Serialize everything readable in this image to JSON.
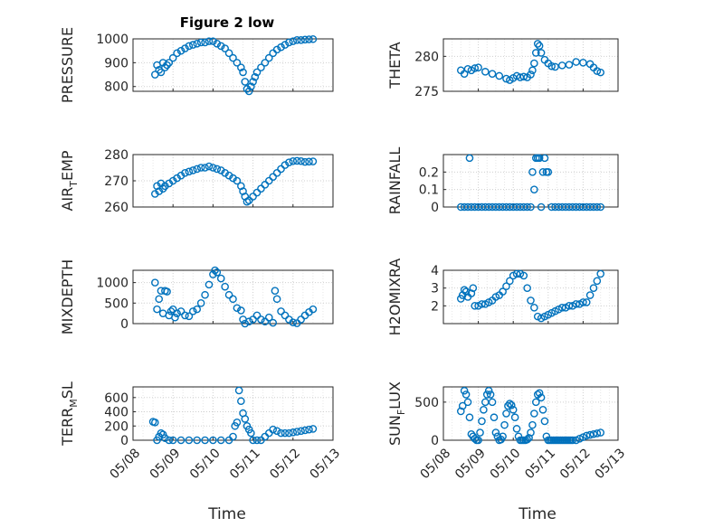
{
  "figure": {
    "title": "Figure 2 low",
    "xlabel": "Time",
    "xtick_labels": [
      "05/08",
      "05/09",
      "05/10",
      "05/11",
      "05/12",
      "05/13"
    ]
  },
  "colors": {
    "marker": "#0072BD",
    "axis": "#262626",
    "grid": "#dedede",
    "background": "#ffffff"
  },
  "chart_data": [
    {
      "type": "scatter",
      "name": "pressure",
      "ylabel": "PRESSURE",
      "xlim": [
        0,
        5
      ],
      "ylim": [
        780,
        1000
      ],
      "ytick_labels": [
        "800",
        "900",
        "1000"
      ],
      "yticks": [
        800,
        900,
        1000
      ],
      "x": [
        0.55,
        0.6,
        0.65,
        0.7,
        0.75,
        0.8,
        0.85,
        0.9,
        1.0,
        1.1,
        1.2,
        1.3,
        1.4,
        1.5,
        1.6,
        1.7,
        1.8,
        1.9,
        2.0,
        2.1,
        2.2,
        2.3,
        2.4,
        2.5,
        2.6,
        2.7,
        2.75,
        2.8,
        2.85,
        2.9,
        2.95,
        3.0,
        3.05,
        3.1,
        3.2,
        3.3,
        3.4,
        3.5,
        3.6,
        3.7,
        3.8,
        3.9,
        4.0,
        4.1,
        4.2,
        4.3,
        4.4,
        4.5
      ],
      "y": [
        850,
        890,
        870,
        860,
        900,
        880,
        890,
        900,
        920,
        940,
        950,
        960,
        970,
        975,
        980,
        985,
        985,
        990,
        990,
        980,
        970,
        960,
        940,
        920,
        900,
        880,
        860,
        820,
        790,
        780,
        800,
        820,
        840,
        860,
        880,
        900,
        920,
        940,
        955,
        965,
        975,
        985,
        990,
        995,
        995,
        997,
        998,
        999
      ]
    },
    {
      "type": "scatter",
      "name": "theta",
      "ylabel": "THETA",
      "xlim": [
        0,
        5
      ],
      "ylim": [
        275,
        282.5
      ],
      "ytick_labels": [
        "275",
        "280"
      ],
      "yticks": [
        275,
        280
      ],
      "x": [
        0.5,
        0.6,
        0.7,
        0.8,
        0.9,
        1.0,
        1.2,
        1.4,
        1.6,
        1.8,
        1.9,
        2.0,
        2.1,
        2.2,
        2.3,
        2.4,
        2.5,
        2.55,
        2.6,
        2.65,
        2.7,
        2.75,
        2.8,
        2.9,
        3.0,
        3.1,
        3.2,
        3.4,
        3.6,
        3.8,
        4.0,
        4.2,
        4.3,
        4.4,
        4.5
      ],
      "y": [
        278,
        277.5,
        278.2,
        278,
        278.3,
        278.4,
        277.8,
        277.5,
        277.2,
        276.8,
        276.6,
        276.9,
        277.2,
        277,
        277.1,
        277,
        277.4,
        278,
        279,
        280.5,
        281.8,
        281.5,
        280.5,
        279.5,
        279,
        278.6,
        278.5,
        278.7,
        278.8,
        279.2,
        279.1,
        278.9,
        278.4,
        277.9,
        277.7
      ]
    },
    {
      "type": "scatter",
      "name": "air_temp",
      "ylabel": "AIR",
      "ylabel_sub": "T",
      "ylabel_tail": "EMP",
      "xlim": [
        0,
        5
      ],
      "ylim": [
        260,
        280
      ],
      "ytick_labels": [
        "260",
        "270",
        "280"
      ],
      "yticks": [
        260,
        270,
        280
      ],
      "x": [
        0.55,
        0.6,
        0.65,
        0.7,
        0.75,
        0.8,
        0.9,
        1.0,
        1.1,
        1.2,
        1.3,
        1.4,
        1.5,
        1.6,
        1.7,
        1.8,
        1.9,
        2.0,
        2.1,
        2.2,
        2.3,
        2.4,
        2.5,
        2.6,
        2.7,
        2.75,
        2.8,
        2.85,
        2.9,
        3.0,
        3.1,
        3.2,
        3.3,
        3.4,
        3.5,
        3.6,
        3.7,
        3.8,
        3.9,
        4.0,
        4.1,
        4.2,
        4.3,
        4.4,
        4.5
      ],
      "y": [
        265,
        268,
        266,
        269,
        267,
        268,
        269,
        270,
        271,
        272,
        273,
        273.5,
        274,
        274.5,
        275,
        275,
        275.5,
        275,
        274.5,
        274,
        273,
        272,
        271,
        270,
        268,
        266,
        264,
        262,
        262.5,
        264,
        265.5,
        267,
        268.5,
        270,
        271.5,
        273,
        274.5,
        276,
        277,
        277.5,
        277.6,
        277.5,
        277.2,
        277.3,
        277.4
      ]
    },
    {
      "type": "scatter",
      "name": "rainfall",
      "ylabel": "RAINFALL",
      "xlim": [
        0,
        5
      ],
      "ylim": [
        0,
        0.3
      ],
      "ytick_labels": [
        "0",
        "0.1",
        "0.2"
      ],
      "yticks": [
        0,
        0.1,
        0.2
      ],
      "x": [
        0.5,
        0.6,
        0.7,
        0.75,
        0.8,
        0.9,
        1.0,
        1.1,
        1.2,
        1.3,
        1.4,
        1.5,
        1.6,
        1.7,
        1.8,
        1.9,
        2.0,
        2.1,
        2.2,
        2.3,
        2.4,
        2.5,
        2.55,
        2.6,
        2.65,
        2.7,
        2.75,
        2.8,
        2.85,
        2.9,
        2.95,
        3.0,
        3.1,
        3.2,
        3.3,
        3.4,
        3.5,
        3.6,
        3.7,
        3.8,
        3.9,
        4.0,
        4.1,
        4.2,
        4.3,
        4.4,
        4.5
      ],
      "y": [
        0,
        0,
        0,
        0.28,
        0,
        0,
        0,
        0,
        0,
        0,
        0,
        0,
        0,
        0,
        0,
        0,
        0,
        0,
        0,
        0,
        0,
        0,
        0.2,
        0.1,
        0.28,
        0.28,
        0.28,
        0,
        0.2,
        0.28,
        0.2,
        0.2,
        0,
        0,
        0,
        0,
        0,
        0,
        0,
        0,
        0,
        0,
        0,
        0,
        0,
        0,
        0
      ]
    },
    {
      "type": "scatter",
      "name": "mixdepth",
      "ylabel": "MIXDEPTH",
      "xlim": [
        0,
        5
      ],
      "ylim": [
        0,
        1300
      ],
      "ytick_labels": [
        "0",
        "500",
        "1000"
      ],
      "yticks": [
        0,
        500,
        1000
      ],
      "x": [
        0.55,
        0.6,
        0.65,
        0.7,
        0.75,
        0.8,
        0.85,
        0.9,
        0.95,
        1.0,
        1.05,
        1.1,
        1.2,
        1.3,
        1.4,
        1.5,
        1.6,
        1.7,
        1.8,
        1.9,
        2.0,
        2.05,
        2.1,
        2.2,
        2.3,
        2.4,
        2.5,
        2.6,
        2.7,
        2.75,
        2.8,
        2.9,
        3.0,
        3.1,
        3.2,
        3.3,
        3.4,
        3.5,
        3.55,
        3.6,
        3.7,
        3.8,
        3.9,
        4.0,
        4.1,
        4.2,
        4.3,
        4.4,
        4.5
      ],
      "y": [
        1000,
        350,
        600,
        800,
        250,
        800,
        780,
        200,
        300,
        350,
        150,
        250,
        300,
        200,
        180,
        300,
        350,
        500,
        700,
        950,
        1200,
        1300,
        1250,
        1100,
        900,
        700,
        600,
        380,
        320,
        100,
        0,
        50,
        100,
        200,
        100,
        50,
        150,
        20,
        800,
        600,
        300,
        200,
        100,
        30,
        10,
        100,
        200,
        280,
        350
      ]
    },
    {
      "type": "scatter",
      "name": "h2omixra",
      "ylabel": "H2OMIXRA",
      "xlim": [
        0,
        5
      ],
      "ylim": [
        1,
        4
      ],
      "ytick_labels": [
        "2",
        "3",
        "4"
      ],
      "yticks": [
        2,
        3,
        4
      ],
      "x": [
        0.5,
        0.55,
        0.6,
        0.65,
        0.7,
        0.8,
        0.85,
        0.9,
        1.0,
        1.1,
        1.2,
        1.3,
        1.4,
        1.5,
        1.6,
        1.7,
        1.8,
        1.9,
        2.0,
        2.1,
        2.2,
        2.3,
        2.4,
        2.5,
        2.6,
        2.7,
        2.8,
        2.9,
        3.0,
        3.1,
        3.2,
        3.3,
        3.4,
        3.5,
        3.6,
        3.7,
        3.8,
        3.9,
        4.0,
        4.1,
        4.2,
        4.3,
        4.4,
        4.5
      ],
      "y": [
        2.4,
        2.6,
        2.9,
        2.8,
        2.5,
        2.7,
        3.0,
        2.0,
        2.0,
        2.1,
        2.1,
        2.2,
        2.3,
        2.5,
        2.6,
        2.8,
        3.1,
        3.4,
        3.7,
        3.8,
        3.8,
        3.7,
        3.0,
        2.3,
        1.9,
        1.4,
        1.3,
        1.4,
        1.5,
        1.6,
        1.7,
        1.8,
        1.9,
        1.9,
        2.0,
        2.0,
        2.1,
        2.1,
        2.2,
        2.2,
        2.6,
        3.0,
        3.4,
        3.8
      ]
    },
    {
      "type": "scatter",
      "name": "terr_msl",
      "ylabel": "TERR",
      "ylabel_sub": "M",
      "ylabel_tail": "SL",
      "xlim": [
        0,
        5
      ],
      "ylim": [
        0,
        750
      ],
      "ytick_labels": [
        "0",
        "200",
        "400",
        "600"
      ],
      "yticks": [
        0,
        200,
        400,
        600
      ],
      "x": [
        0.5,
        0.55,
        0.6,
        0.65,
        0.7,
        0.75,
        0.8,
        0.9,
        1.0,
        1.2,
        1.4,
        1.6,
        1.8,
        2.0,
        2.2,
        2.4,
        2.5,
        2.55,
        2.6,
        2.65,
        2.7,
        2.75,
        2.8,
        2.85,
        2.9,
        2.95,
        3.0,
        3.1,
        3.2,
        3.3,
        3.4,
        3.5,
        3.6,
        3.7,
        3.8,
        3.9,
        4.0,
        4.1,
        4.2,
        4.3,
        4.4,
        4.5
      ],
      "y": [
        260,
        250,
        0,
        50,
        100,
        80,
        30,
        0,
        0,
        0,
        0,
        0,
        0,
        0,
        0,
        0,
        50,
        200,
        250,
        700,
        550,
        380,
        300,
        200,
        150,
        100,
        0,
        0,
        0,
        50,
        100,
        150,
        130,
        100,
        100,
        100,
        110,
        120,
        130,
        140,
        150,
        160
      ]
    },
    {
      "type": "scatter",
      "name": "sunflux",
      "ylabel": "SUN",
      "ylabel_sub": "F",
      "ylabel_tail": "LUX",
      "xlim": [
        0,
        5
      ],
      "ylim": [
        0,
        700
      ],
      "ytick_labels": [
        "0",
        "500"
      ],
      "yticks": [
        0,
        500
      ],
      "x": [
        0.5,
        0.55,
        0.6,
        0.65,
        0.7,
        0.75,
        0.8,
        0.85,
        0.9,
        0.95,
        1.0,
        1.05,
        1.1,
        1.15,
        1.2,
        1.25,
        1.3,
        1.35,
        1.4,
        1.45,
        1.5,
        1.55,
        1.6,
        1.65,
        1.7,
        1.75,
        1.8,
        1.85,
        1.9,
        1.95,
        2.0,
        2.05,
        2.1,
        2.15,
        2.2,
        2.25,
        2.3,
        2.35,
        2.4,
        2.45,
        2.5,
        2.55,
        2.6,
        2.65,
        2.7,
        2.75,
        2.8,
        2.85,
        2.9,
        2.95,
        3.0,
        3.05,
        3.1,
        3.15,
        3.2,
        3.25,
        3.3,
        3.35,
        3.4,
        3.45,
        3.5,
        3.55,
        3.6,
        3.65,
        3.7,
        3.8,
        3.9,
        4.0,
        4.1,
        4.2,
        4.3,
        4.4,
        4.5
      ],
      "y": [
        380,
        450,
        650,
        600,
        500,
        300,
        80,
        50,
        20,
        0,
        0,
        100,
        250,
        400,
        500,
        600,
        650,
        600,
        500,
        300,
        100,
        50,
        0,
        10,
        50,
        200,
        350,
        450,
        480,
        460,
        400,
        300,
        150,
        50,
        0,
        0,
        0,
        0,
        10,
        30,
        100,
        200,
        350,
        500,
        600,
        620,
        560,
        400,
        250,
        50,
        0,
        0,
        0,
        0,
        0,
        0,
        0,
        0,
        0,
        0,
        0,
        0,
        0,
        0,
        0,
        0,
        20,
        40,
        60,
        70,
        80,
        90,
        100
      ]
    }
  ]
}
